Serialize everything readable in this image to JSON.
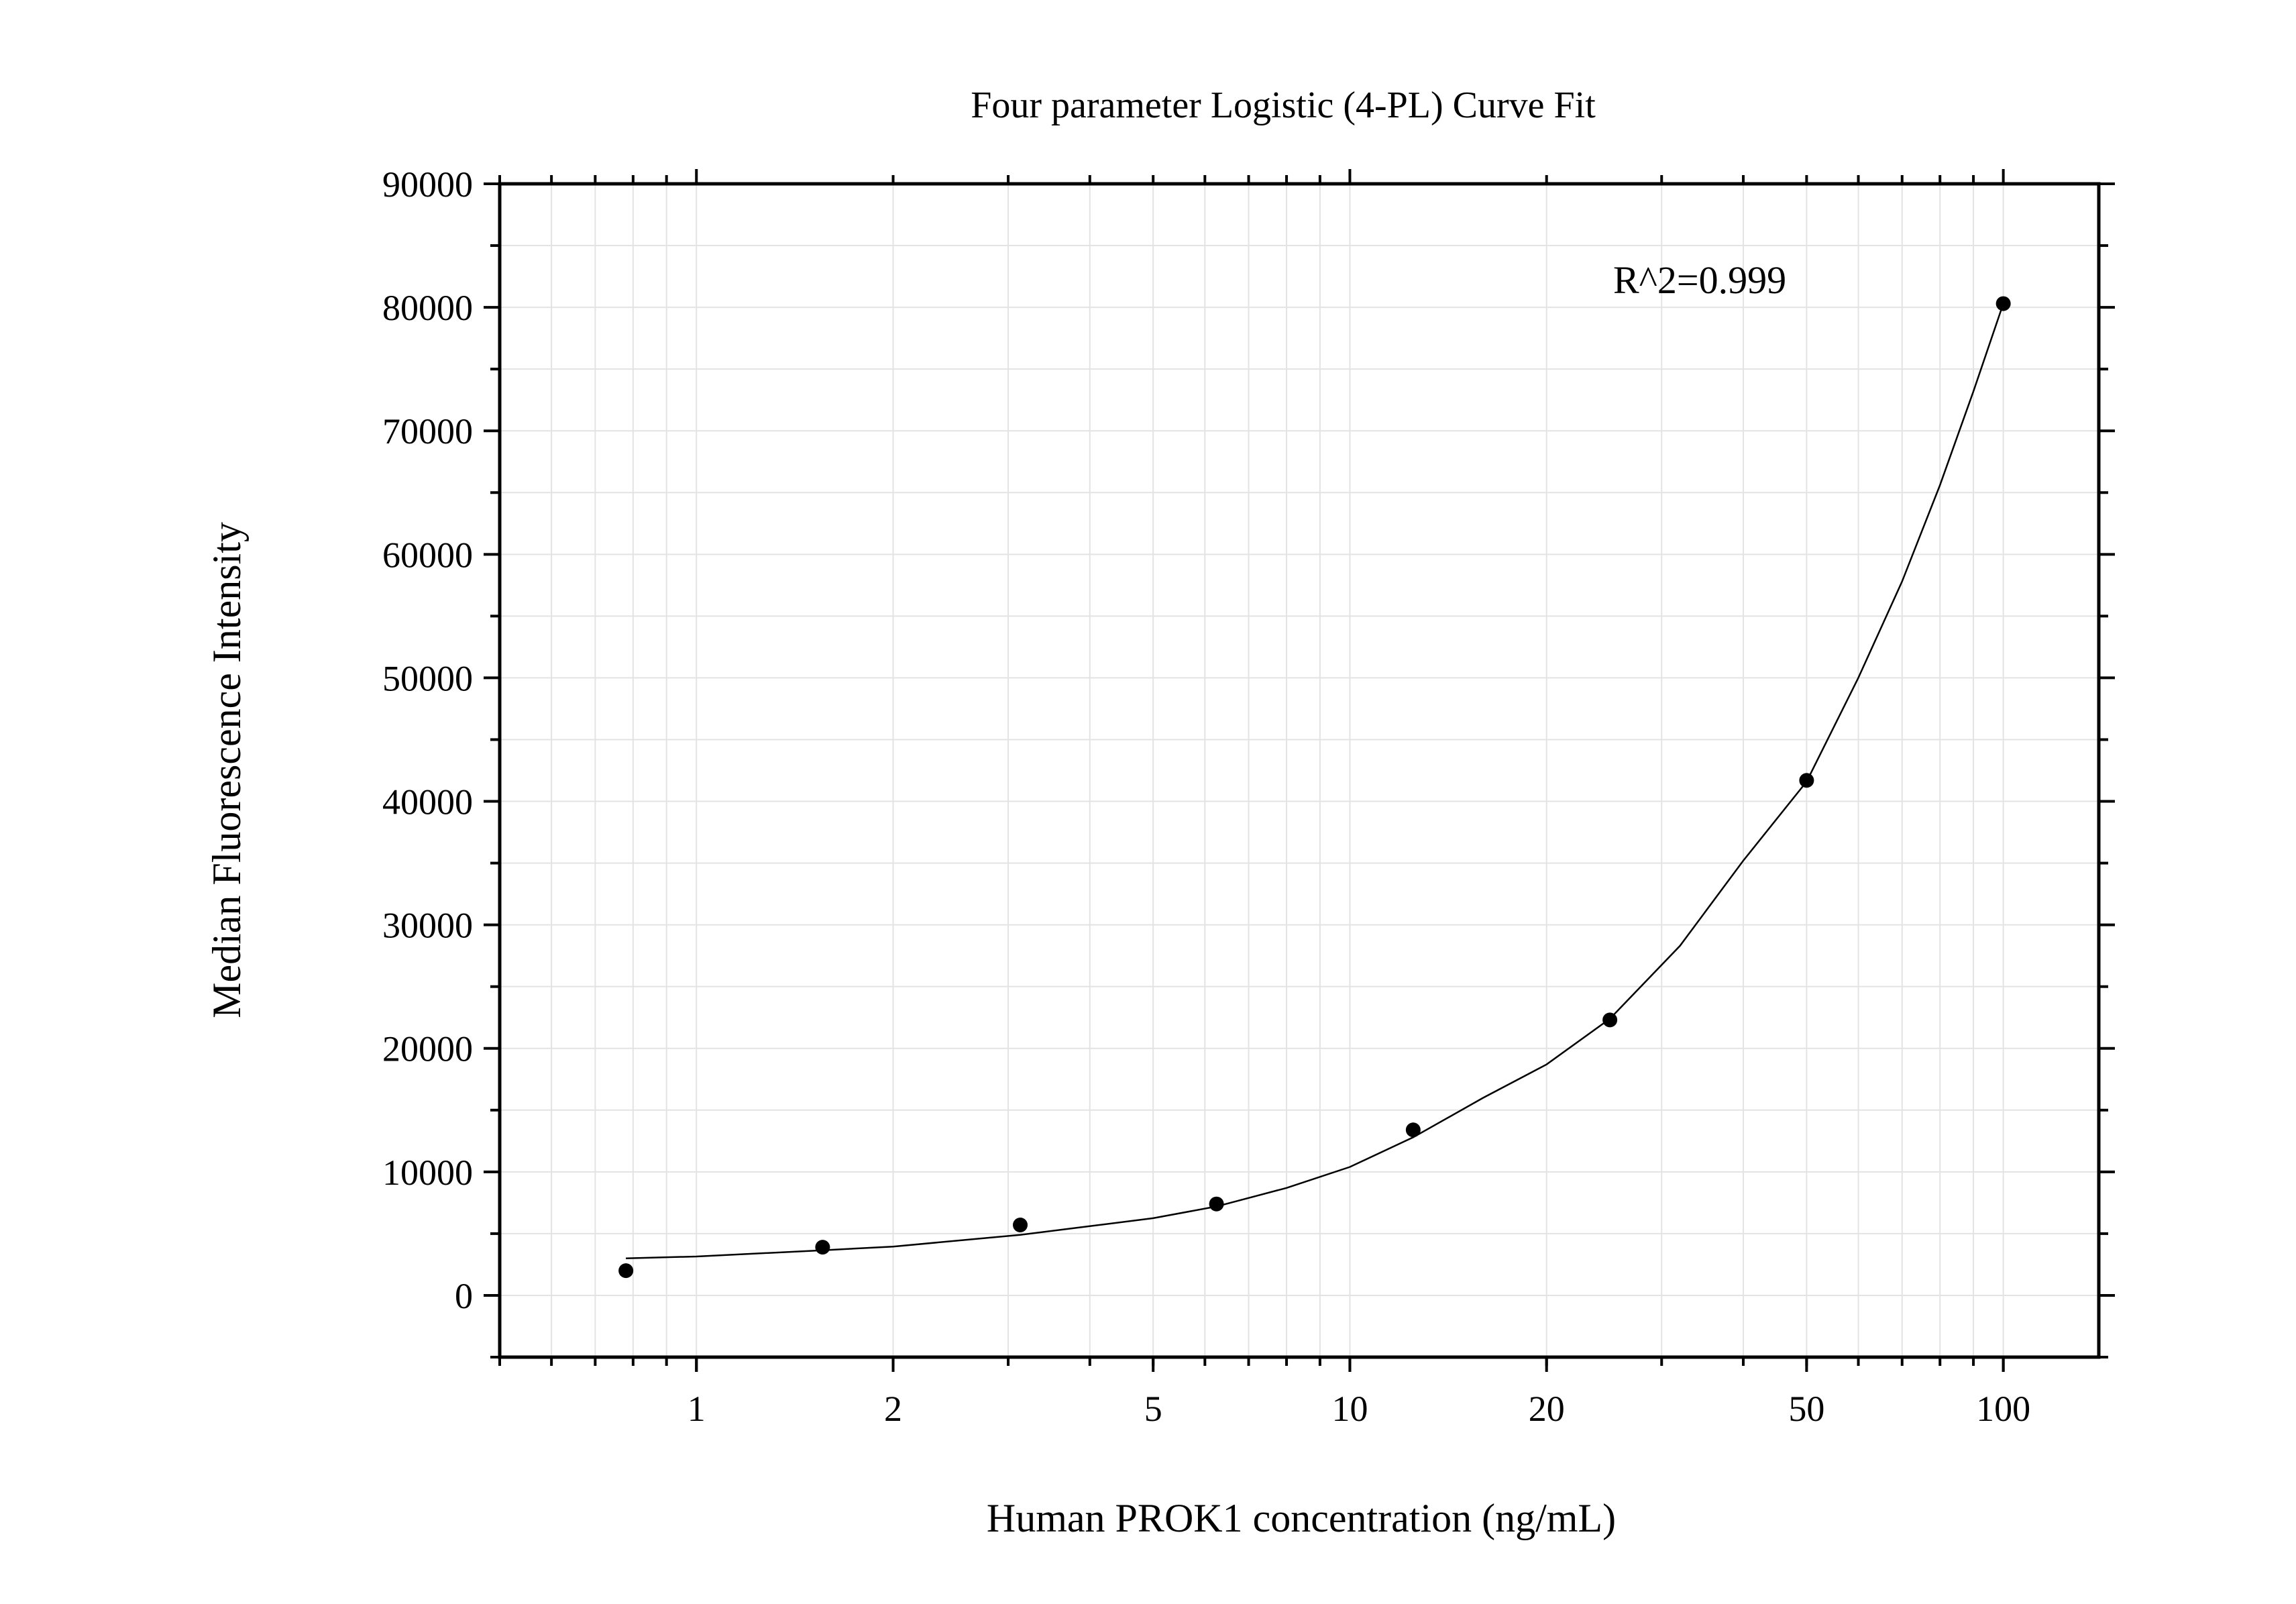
{
  "chart_data": {
    "type": "scatter",
    "title": "Four parameter Logistic (4-PL) Curve Fit",
    "xlabel": "Human PROK1 concentration (ng/mL)",
    "ylabel": "Median Fluorescence Intensity",
    "x_scale": "log",
    "xlim": [
      0.5,
      140
    ],
    "ylim": [
      -5000,
      90000
    ],
    "x_ticks": [
      1,
      2,
      5,
      10,
      20,
      50,
      100
    ],
    "x_tick_labels": [
      "1",
      "2",
      "5",
      "10",
      "20",
      "50",
      "100"
    ],
    "y_ticks": [
      0,
      10000,
      20000,
      30000,
      40000,
      50000,
      60000,
      70000,
      80000,
      90000
    ],
    "y_tick_labels": [
      "0",
      "10000",
      "20000",
      "30000",
      "40000",
      "50000",
      "60000",
      "70000",
      "80000",
      "90000"
    ],
    "grid": true,
    "annotation": "R^2=0.999",
    "series": [
      {
        "points": [
          {
            "x": 0.78,
            "y": 2000
          },
          {
            "x": 1.56,
            "y": 3900
          },
          {
            "x": 3.13,
            "y": 5700
          },
          {
            "x": 6.25,
            "y": 7400
          },
          {
            "x": 12.5,
            "y": 13400
          },
          {
            "x": 25,
            "y": 22300
          },
          {
            "x": 50,
            "y": 41700
          },
          {
            "x": 100,
            "y": 80300
          }
        ]
      }
    ],
    "fit_curve": [
      {
        "x": 0.78,
        "y": 3000
      },
      {
        "x": 1,
        "y": 3150
      },
      {
        "x": 1.56,
        "y": 3650
      },
      {
        "x": 2,
        "y": 3950
      },
      {
        "x": 3.13,
        "y": 4900
      },
      {
        "x": 4,
        "y": 5600
      },
      {
        "x": 5,
        "y": 6250
      },
      {
        "x": 6.25,
        "y": 7200
      },
      {
        "x": 8,
        "y": 8700
      },
      {
        "x": 10,
        "y": 10400
      },
      {
        "x": 12.5,
        "y": 12800
      },
      {
        "x": 16,
        "y": 16000
      },
      {
        "x": 20,
        "y": 18700
      },
      {
        "x": 25,
        "y": 22400
      },
      {
        "x": 32,
        "y": 28300
      },
      {
        "x": 40,
        "y": 35200
      },
      {
        "x": 50,
        "y": 41600
      },
      {
        "x": 60,
        "y": 50000
      },
      {
        "x": 70,
        "y": 57800
      },
      {
        "x": 80,
        "y": 65600
      },
      {
        "x": 90,
        "y": 73200
      },
      {
        "x": 100,
        "y": 80300
      }
    ],
    "colors": {
      "marker": "#000000",
      "curve": "#000000",
      "grid": "#e3e3e3",
      "axis": "#000000"
    }
  }
}
